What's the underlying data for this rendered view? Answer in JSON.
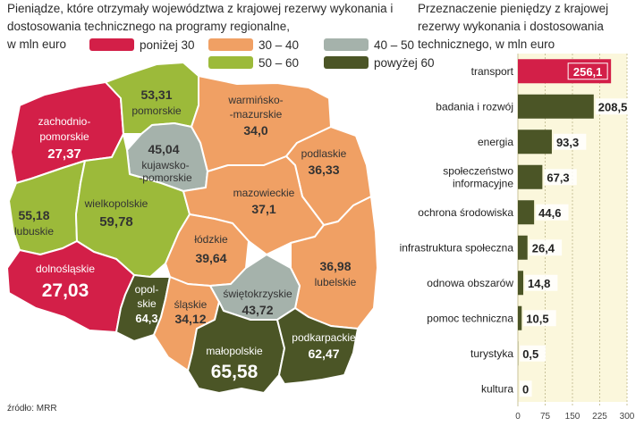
{
  "map": {
    "title": "Pieniądze, które otrzymały województwa z krajowej rezerwy wykonania i dostosowania technicznego na programy regionalne,",
    "unit": "w mln euro",
    "legend": [
      {
        "label": "poniżej 30",
        "color": "#d31f48"
      },
      {
        "label": "30 – 40",
        "color": "#f0a064"
      },
      {
        "label": "40 – 50",
        "color": "#a5b2ab"
      },
      {
        "label": "50 – 60",
        "color": "#9cba3a"
      },
      {
        "label": "powyżej 60",
        "color": "#4b5526"
      }
    ],
    "regions": [
      {
        "name": "zachodnio-pomorskie",
        "value": "27,37",
        "color": "#d31f48"
      },
      {
        "name": "pomorskie",
        "value": "53,31",
        "color": "#9cba3a"
      },
      {
        "name": "warmińsko--mazurskie",
        "value": "34,0",
        "color": "#f0a064"
      },
      {
        "name": "kujawsko--pomorskie",
        "value": "45,04",
        "color": "#a5b2ab"
      },
      {
        "name": "podlaskie",
        "value": "36,33",
        "color": "#f0a064"
      },
      {
        "name": "lubuskie",
        "value": "55,18",
        "color": "#9cba3a"
      },
      {
        "name": "wielkopolskie",
        "value": "59,78",
        "color": "#9cba3a"
      },
      {
        "name": "mazowieckie",
        "value": "37,1",
        "color": "#f0a064"
      },
      {
        "name": "łódzkie",
        "value": "39,64",
        "color": "#f0a064"
      },
      {
        "name": "dolnośląskie",
        "value": "27,03",
        "color": "#d31f48"
      },
      {
        "name": "opolskie",
        "value": "64,3",
        "color": "#4b5526"
      },
      {
        "name": "śląskie",
        "value": "34,12",
        "color": "#f0a064"
      },
      {
        "name": "świętokrzyskie",
        "value": "43,72",
        "color": "#a5b2ab"
      },
      {
        "name": "lubelskie",
        "value": "36,98",
        "color": "#f0a064"
      },
      {
        "name": "małopolskie",
        "value": "65,58",
        "color": "#4b5526"
      },
      {
        "name": "podkarpackie",
        "value": "62,47",
        "color": "#4b5526"
      }
    ],
    "labels": {
      "zachodniopomorskie": {
        "line1": "zachodnio-",
        "line2": "pomorskie",
        "value": "27,37"
      },
      "pomorskie": {
        "value": "53,31",
        "name": "pomorskie"
      },
      "warminsko": {
        "line1": "warmińsko-",
        "line2": "-mazurskie",
        "value": "34,0"
      },
      "kujawsko": {
        "value": "45,04",
        "line1": "kujawsko-",
        "line2": "-pomorskie"
      },
      "podlaskie": {
        "name": "podlaskie",
        "value": "36,33"
      },
      "lubuskie": {
        "value": "55,18",
        "name": "lubuskie"
      },
      "wielkopolskie": {
        "name": "wielkopolskie",
        "value": "59,78"
      },
      "mazowieckie": {
        "name": "mazowieckie",
        "value": "37,1"
      },
      "lodzkie": {
        "name": "łódzkie",
        "value": "39,64"
      },
      "dolnoslaskie": {
        "name": "dolnośląskie",
        "value": "27,03"
      },
      "opolskie": {
        "line1": "opol-",
        "line2": "skie",
        "value": "64,3"
      },
      "slaskie": {
        "name": "śląskie",
        "value": "34,12"
      },
      "swietokrzyskie": {
        "name": "świętokrzyskie",
        "value": "43,72"
      },
      "lubelskie": {
        "value": "36,98",
        "name": "lubelskie"
      },
      "malopolskie": {
        "name": "małopolskie",
        "value": "65,58"
      },
      "podkarpackie": {
        "name": "podkarpackie",
        "value": "62,47"
      }
    },
    "source": "źródło: MRR"
  },
  "chart_data": {
    "type": "bar",
    "orientation": "horizontal",
    "title": "Przeznaczenie pieniędzy z krajowej rezerwy wykonania i dostosowania technicznego, w mln euro",
    "categories": [
      "transport",
      "badania i rozwój",
      "energia",
      "społeczeństwo informacyjne",
      "ochrona środowiska",
      "infrastruktura społeczna",
      "odnowa obszarów",
      "pomoc techniczna",
      "turystyka",
      "kultura"
    ],
    "category_lines": [
      [
        "transport"
      ],
      [
        "badania i rozwój"
      ],
      [
        "energia"
      ],
      [
        "społeczeństwo",
        "informacyjne"
      ],
      [
        "ochrona środowiska"
      ],
      [
        "infrastruktura społeczna"
      ],
      [
        "odnowa obszarów"
      ],
      [
        "pomoc techniczna"
      ],
      [
        "turystyka"
      ],
      [
        "kultura"
      ]
    ],
    "values": [
      256.1,
      208.5,
      93.3,
      67.3,
      44.6,
      26.4,
      14.8,
      10.5,
      0.5,
      0
    ],
    "value_labels": [
      "256,1",
      "208,5",
      "93,3",
      "67,3",
      "44,6",
      "26,4",
      "14,8",
      "10,5",
      "0,5",
      "0"
    ],
    "xlim": [
      0,
      300
    ],
    "ticks": [
      "0",
      "75",
      "150",
      "225",
      "300"
    ],
    "tick_values": [
      0,
      75,
      150,
      225,
      300
    ],
    "highlight_color": "#d31f48",
    "bar_color": "#4b5526",
    "grid": true
  }
}
